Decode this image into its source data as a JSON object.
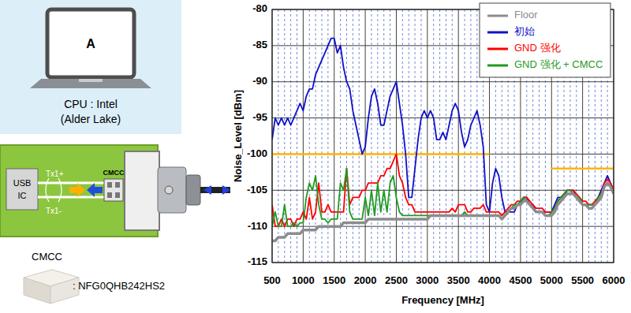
{
  "chart_data": {
    "type": "line",
    "x_label": "Frequency [MHz]",
    "y_label": "Noise_Level [dBm]",
    "xlim": [
      500,
      6000
    ],
    "xticks": [
      500,
      1000,
      1500,
      2000,
      2500,
      3000,
      3500,
      4000,
      4500,
      5000,
      5500,
      6000
    ],
    "ylim": [
      -115,
      -80
    ],
    "yticks": [
      -115,
      -110,
      -105,
      -100,
      -95,
      -90,
      -85,
      -80
    ],
    "grid": true,
    "legend": "top-right",
    "x": [
      500,
      550,
      600,
      650,
      700,
      750,
      800,
      850,
      900,
      950,
      1000,
      1050,
      1100,
      1150,
      1200,
      1250,
      1300,
      1350,
      1400,
      1450,
      1500,
      1550,
      1600,
      1650,
      1700,
      1750,
      1800,
      1850,
      1900,
      1950,
      2000,
      2050,
      2100,
      2150,
      2200,
      2250,
      2300,
      2350,
      2400,
      2450,
      2500,
      2550,
      2600,
      2650,
      2700,
      2750,
      2800,
      2850,
      2900,
      2950,
      3000,
      3050,
      3100,
      3150,
      3200,
      3250,
      3300,
      3350,
      3400,
      3450,
      3500,
      3550,
      3600,
      3650,
      3700,
      3750,
      3800,
      3850,
      3900,
      3950,
      4000,
      4050,
      4100,
      4150,
      4200,
      4250,
      4300,
      4350,
      4400,
      4450,
      4500,
      4550,
      4600,
      4650,
      4700,
      4750,
      4800,
      4850,
      4900,
      4950,
      5000,
      5050,
      5100,
      5150,
      5200,
      5250,
      5300,
      5350,
      5400,
      5450,
      5500,
      5550,
      5600,
      5650,
      5700,
      5750,
      5800,
      5850,
      5900,
      5950,
      6000
    ],
    "series": [
      {
        "name": "Floor",
        "color": "#8c8c8c",
        "values": [
          -112,
          -112,
          -111.5,
          -111.5,
          -111.5,
          -111,
          -111,
          -111,
          -111,
          -111,
          -110.5,
          -110.5,
          -110.5,
          -110.5,
          -110.5,
          -110,
          -110,
          -110,
          -110,
          -110,
          -110,
          -110,
          -110,
          -109.5,
          -109.5,
          -109.5,
          -109.5,
          -109.5,
          -109.5,
          -109.5,
          -109.5,
          -109,
          -109,
          -109,
          -109,
          -109,
          -109,
          -109,
          -109,
          -109,
          -109,
          -109,
          -109,
          -109,
          -109,
          -109,
          -109,
          -109,
          -109,
          -109,
          -109,
          -108.5,
          -108.5,
          -108.5,
          -108.5,
          -108.5,
          -108.5,
          -108.5,
          -108.5,
          -108.5,
          -108.5,
          -108.5,
          -108.5,
          -108.5,
          -108.5,
          -108.5,
          -108.5,
          -108.5,
          -108.5,
          -108.5,
          -108.5,
          -108.5,
          -108.5,
          -108.5,
          -109,
          -108.5,
          -108,
          -107.5,
          -107.5,
          -107,
          -107,
          -106.5,
          -106.5,
          -107,
          -107.5,
          -108,
          -108,
          -108,
          -108.5,
          -108.5,
          -108.5,
          -108,
          -107,
          -106.5,
          -106,
          -105.5,
          -105.5,
          -105.5,
          -106,
          -106.5,
          -107,
          -107,
          -107.5,
          -107.5,
          -107,
          -106.5,
          -106,
          -104.5,
          -104,
          -104.5,
          -105.5
        ]
      },
      {
        "name": "初始",
        "color": "#1010c8",
        "values": [
          -98,
          -95,
          -96,
          -95,
          -96,
          -95,
          -96,
          -95,
          -94,
          -93,
          -94,
          -92,
          -91,
          -91,
          -89,
          -88,
          -87,
          -86,
          -85,
          -84,
          -84,
          -86,
          -85,
          -88,
          -90,
          -91,
          -94,
          -96,
          -98,
          -100,
          -99,
          -95,
          -92,
          -91,
          -93,
          -96,
          -96,
          -94,
          -92,
          -91,
          -90,
          -93,
          -96,
          -100,
          -106,
          -106,
          -102,
          -98,
          -95,
          -94,
          -95,
          -94,
          -95,
          -98,
          -98,
          -97,
          -98,
          -96,
          -94,
          -93,
          -94,
          -97,
          -99,
          -98,
          -96,
          -95,
          -94,
          -96,
          -99,
          -107,
          -108,
          -104,
          -102,
          -103,
          -106,
          -108,
          -108,
          -108,
          -108,
          -107,
          -107,
          -106,
          -106,
          -107,
          -107,
          -108,
          -108,
          -108,
          -108,
          -108,
          -108,
          -107,
          -106,
          -106,
          -106,
          -105,
          -105,
          -105,
          -106,
          -106,
          -107,
          -107,
          -107,
          -107,
          -107,
          -106,
          -105,
          -104,
          -103,
          -104,
          -105
        ]
      },
      {
        "name": "GND 强化",
        "color": "#ff0000",
        "values": [
          -107,
          -110,
          -110,
          -109,
          -110,
          -109,
          -109,
          -110,
          -109,
          -109,
          -108,
          -109,
          -106,
          -109,
          -108,
          -104,
          -108,
          -108,
          -107,
          -108,
          -108,
          -108,
          -108,
          -108,
          -102,
          -107,
          -106,
          -106,
          -106,
          -105,
          -105,
          -104,
          -104,
          -104,
          -104,
          -103,
          -103,
          -102,
          -102,
          -101,
          -100,
          -103,
          -104,
          -106,
          -107,
          -107,
          -108,
          -108,
          -108,
          -108,
          -108,
          -108,
          -108,
          -108,
          -108,
          -108,
          -108,
          -108,
          -107.5,
          -108,
          -107,
          -107,
          -107,
          -108,
          -108,
          -107.5,
          -107.5,
          -107.5,
          -107,
          -108,
          -108,
          -108,
          -108,
          -108,
          -108.5,
          -108,
          -107.5,
          -107,
          -107,
          -106.5,
          -106.5,
          -106,
          -106,
          -106.5,
          -107,
          -107.5,
          -107.5,
          -107.5,
          -108,
          -108,
          -108,
          -107.5,
          -106.5,
          -106,
          -105.5,
          -105,
          -105,
          -105,
          -105.5,
          -106,
          -106.5,
          -106.5,
          -107,
          -107,
          -106.5,
          -106,
          -105.5,
          -104,
          -103.5,
          -104,
          -105
        ]
      },
      {
        "name": "GND 强化 + CMCC",
        "color": "#1f9a1f",
        "values": [
          -110,
          -108,
          -110,
          -110,
          -107,
          -110,
          -110,
          -109.5,
          -110,
          -109.5,
          -109.5,
          -106,
          -104,
          -105,
          -103,
          -107,
          -109,
          -109,
          -109.5,
          -109,
          -109,
          -109,
          -104,
          -105,
          -102,
          -108,
          -109,
          -109,
          -109,
          -109,
          -106,
          -108.5,
          -105,
          -108.5,
          -104,
          -108,
          -105,
          -108,
          -104,
          -103,
          -106,
          -108,
          -108.5,
          -108.5,
          -108.5,
          -108.5,
          -108.5,
          -108.5,
          -108.5,
          -108.5,
          -108.5,
          -108.5,
          -108.5,
          -108.5,
          -108.5,
          -108.5,
          -108.5,
          -108.5,
          -108.5,
          -108.5,
          -108.5,
          -108.5,
          -108,
          -108.5,
          -108.5,
          -108.5,
          -108.5,
          -108.5,
          -108.5,
          -108.5,
          -108.5,
          -108.5,
          -108.5,
          -108.5,
          -109,
          -108.5,
          -108,
          -107.5,
          -107,
          -107,
          -106.5,
          -106,
          -106.5,
          -107,
          -107.5,
          -108,
          -108,
          -108,
          -108.5,
          -108.5,
          -108,
          -107.5,
          -106.5,
          -106,
          -105.5,
          -105,
          -105,
          -105.5,
          -106,
          -106,
          -107,
          -107,
          -107,
          -107,
          -107,
          -106,
          -105.5,
          -104.5,
          -104,
          -104.5,
          -105.5
        ]
      }
    ],
    "limit_lines": [
      {
        "color": "#ffb400",
        "x": [
          500,
          4000
        ],
        "values": [
          -100,
          -100
        ]
      },
      {
        "color": "#ffb400",
        "x": [
          5000,
          6000
        ],
        "values": [
          -102,
          -102
        ]
      }
    ]
  },
  "illustration": {
    "screen_letter": "A",
    "cpu": [
      "CPU : Intel",
      "(Alder Lake)"
    ],
    "board": {
      "ic": [
        "USB",
        "IC"
      ],
      "tx_plus": "Tx1+",
      "tx_minus": "Tx1-",
      "cmcc": "CMCC"
    },
    "part": {
      "label": "CMCC",
      "part_number": ": NFG0QHB242HS2"
    }
  }
}
